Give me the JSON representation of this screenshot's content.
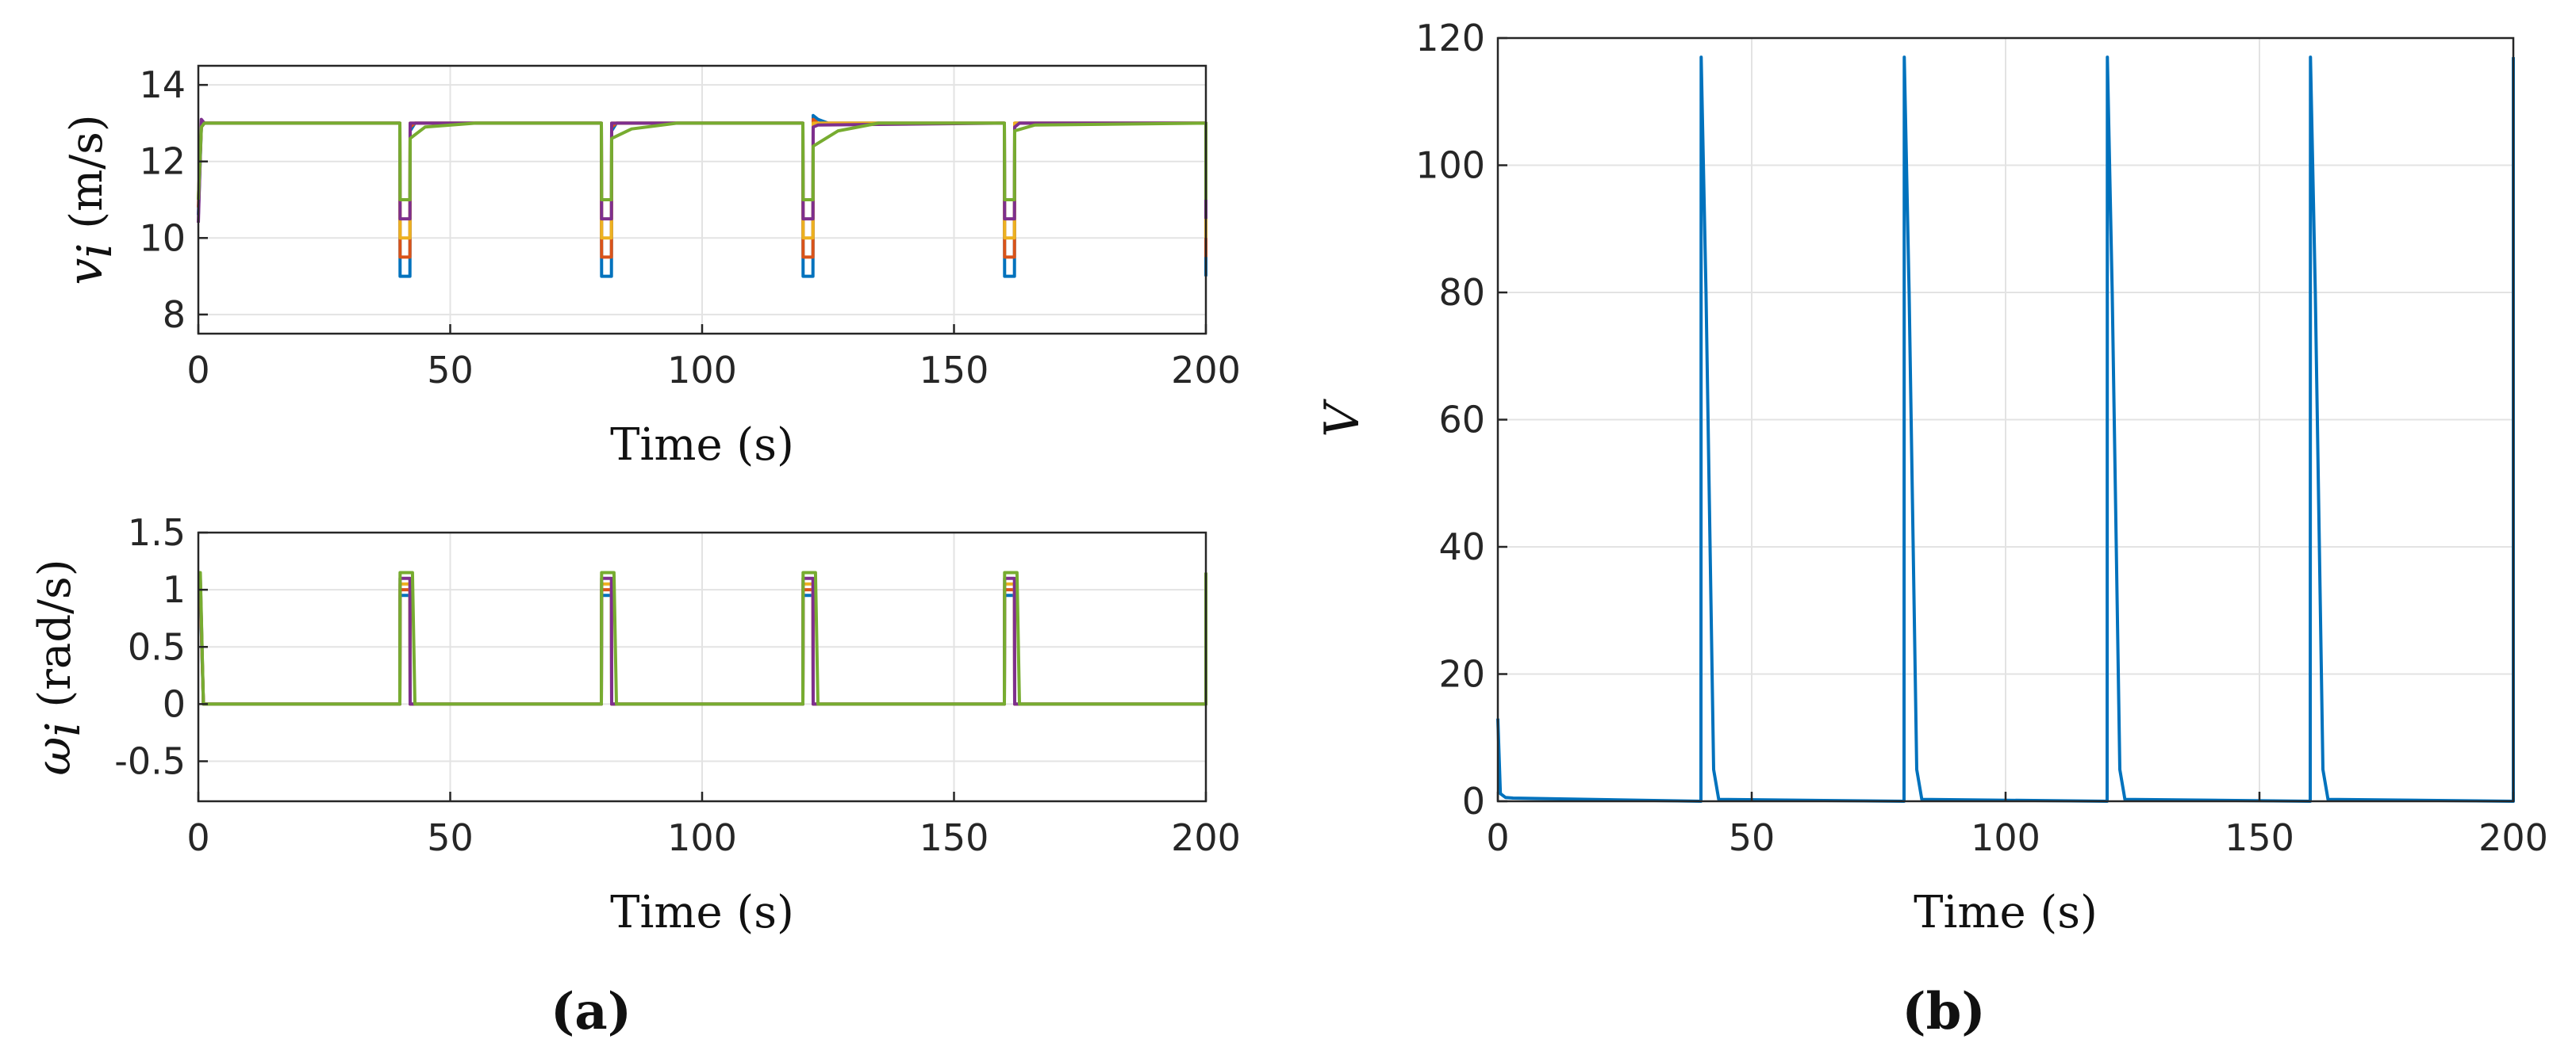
{
  "panels": {
    "a_label": "(a)",
    "b_label": "(b)"
  },
  "chart_data": [
    {
      "id": "a-top",
      "type": "line",
      "xlabel": "Time (s)",
      "ylabel_symbol": "v",
      "ylabel_subscript": "i",
      "ylabel_unit": " (m/s)",
      "xlim": [
        0,
        200
      ],
      "ylim": [
        7.5,
        14.5
      ],
      "xticks": [
        0,
        50,
        100,
        150,
        200
      ],
      "xtick_labels": [
        "0",
        "50",
        "100",
        "150",
        "200"
      ],
      "yticks": [
        8,
        10,
        12,
        14
      ],
      "ytick_labels": [
        "8",
        "10",
        "12",
        "14"
      ],
      "grid": true,
      "series": [
        {
          "color": "#0072BD",
          "x": [
            0,
            0.6,
            1.2,
            40,
            40.05,
            42,
            42.05,
            43,
            80,
            80.05,
            82,
            82.05,
            83,
            120,
            120.05,
            122,
            122.05,
            123,
            125,
            160,
            160.05,
            162,
            162.05,
            163,
            200,
            200.05
          ],
          "y": [
            10.6,
            12.9,
            13.0,
            13.0,
            9.0,
            9.0,
            12.8,
            13.0,
            13.0,
            9.0,
            9.0,
            12.8,
            13.0,
            13.0,
            9.0,
            9.0,
            13.2,
            13.1,
            13.0,
            13.0,
            9.0,
            9.0,
            13.0,
            13.0,
            13.0,
            9.0
          ]
        },
        {
          "color": "#D95319",
          "x": [
            0,
            0.6,
            1.2,
            40,
            40.05,
            42,
            42.05,
            43,
            80,
            80.05,
            82,
            82.05,
            83,
            120,
            120.05,
            122,
            122.05,
            123,
            160,
            160.05,
            162,
            162.05,
            163,
            200,
            200.05
          ],
          "y": [
            10.8,
            12.9,
            13.0,
            13.0,
            9.5,
            9.5,
            12.9,
            13.0,
            13.0,
            9.5,
            9.5,
            12.9,
            13.0,
            13.0,
            9.5,
            9.5,
            13.1,
            13.0,
            13.0,
            9.5,
            9.5,
            13.0,
            13.0,
            13.0,
            9.5
          ]
        },
        {
          "color": "#EDB120",
          "x": [
            0,
            0.6,
            1.2,
            40,
            40.05,
            42,
            42.05,
            43,
            80,
            80.05,
            82,
            82.05,
            83,
            120,
            120.05,
            122,
            122.05,
            123,
            160,
            160.05,
            162,
            162.05,
            163,
            200,
            200.05
          ],
          "y": [
            11.0,
            13.0,
            13.0,
            13.0,
            10.0,
            10.0,
            13.0,
            13.0,
            13.0,
            10.0,
            10.0,
            13.0,
            13.0,
            13.0,
            10.0,
            10.0,
            13.0,
            13.0,
            13.0,
            10.0,
            10.0,
            13.0,
            13.0,
            13.0,
            10.0
          ]
        },
        {
          "color": "#7E2F8E",
          "x": [
            0,
            0.6,
            1.2,
            40,
            40.05,
            42,
            42.05,
            43,
            80,
            80.05,
            82,
            82.05,
            83,
            120,
            120.05,
            122,
            122.05,
            123,
            160,
            160.05,
            162,
            162.05,
            163,
            200,
            200.05
          ],
          "y": [
            10.4,
            13.1,
            13.0,
            13.0,
            10.5,
            10.5,
            13.0,
            13.0,
            13.0,
            10.5,
            10.5,
            13.0,
            13.0,
            13.0,
            10.5,
            10.5,
            12.9,
            12.95,
            13.0,
            10.5,
            10.5,
            12.9,
            13.0,
            13.0,
            10.5
          ]
        },
        {
          "color": "#77AC30",
          "x": [
            0,
            0.6,
            1.2,
            40,
            40.05,
            42,
            42.05,
            45,
            55,
            80,
            80.05,
            82,
            82.05,
            86,
            95,
            120,
            120.05,
            122,
            122.05,
            127,
            135,
            160,
            160.05,
            162,
            162.05,
            166,
            200,
            200.05
          ],
          "y": [
            11.0,
            12.9,
            13.0,
            13.0,
            11.0,
            11.0,
            12.6,
            12.9,
            13.0,
            13.0,
            11.0,
            11.0,
            12.6,
            12.85,
            13.0,
            13.0,
            11.0,
            11.0,
            12.4,
            12.8,
            13.0,
            13.0,
            11.0,
            11.0,
            12.8,
            12.95,
            13.0,
            11.0
          ]
        }
      ]
    },
    {
      "id": "a-bottom",
      "type": "line",
      "xlabel": "Time (s)",
      "ylabel_symbol": "ω",
      "ylabel_subscript": "i",
      "ylabel_unit": " (rad/s)",
      "xlim": [
        0,
        200
      ],
      "ylim": [
        -0.85,
        1.5
      ],
      "xticks": [
        0,
        50,
        100,
        150,
        200
      ],
      "xtick_labels": [
        "0",
        "50",
        "100",
        "150",
        "200"
      ],
      "yticks": [
        -0.5,
        0,
        0.5,
        1,
        1.5
      ],
      "ytick_labels": [
        "-0.5",
        "0",
        "0.5",
        "1",
        "1.5"
      ],
      "grid": true,
      "series": [
        {
          "color": "#0072BD",
          "x": [
            0,
            0.4,
            1.0,
            40,
            40.05,
            42,
            42.05,
            80,
            80.05,
            82,
            82.05,
            120,
            120.05,
            122,
            122.05,
            160,
            160.05,
            162,
            162.05,
            200,
            200.05
          ],
          "y": [
            0.95,
            0.95,
            0.0,
            0.0,
            0.95,
            0.95,
            0.0,
            0.0,
            0.95,
            0.95,
            0.0,
            0.0,
            0.95,
            0.95,
            0.0,
            0.0,
            0.95,
            0.95,
            0.0,
            0.0,
            0.95
          ]
        },
        {
          "color": "#D95319",
          "x": [
            0,
            0.4,
            1.0,
            40,
            40.05,
            42,
            42.05,
            80,
            80.05,
            82,
            82.05,
            120,
            120.05,
            122,
            122.05,
            160,
            160.05,
            162,
            162.05,
            200,
            200.05
          ],
          "y": [
            1.0,
            1.0,
            0.0,
            0.0,
            1.0,
            1.0,
            0.0,
            0.0,
            1.0,
            1.0,
            0.0,
            0.0,
            1.0,
            1.0,
            0.0,
            0.0,
            1.0,
            1.0,
            0.0,
            0.0,
            1.0
          ]
        },
        {
          "color": "#EDB120",
          "x": [
            0,
            0.4,
            1.0,
            40,
            40.05,
            42,
            42.05,
            80,
            80.05,
            82,
            82.05,
            120,
            120.05,
            122,
            122.05,
            160,
            160.05,
            162,
            162.05,
            200,
            200.05
          ],
          "y": [
            1.05,
            1.05,
            0.0,
            0.0,
            1.05,
            1.05,
            0.0,
            0.0,
            1.05,
            1.05,
            0.0,
            0.0,
            1.05,
            1.05,
            0.0,
            0.0,
            1.05,
            1.05,
            0.0,
            0.0,
            1.05
          ]
        },
        {
          "color": "#7E2F8E",
          "x": [
            0,
            0.4,
            1.0,
            40,
            40.05,
            42,
            42.05,
            80,
            80.05,
            82,
            82.05,
            120,
            120.05,
            122,
            122.05,
            160,
            160.05,
            162,
            162.05,
            200,
            200.05
          ],
          "y": [
            1.1,
            1.1,
            0.0,
            0.0,
            1.1,
            1.1,
            0.0,
            0.0,
            1.1,
            1.1,
            0.0,
            0.0,
            1.1,
            1.1,
            0.0,
            0.0,
            1.1,
            1.1,
            0.0,
            0.0,
            1.1
          ]
        },
        {
          "color": "#77AC30",
          "x": [
            0,
            0.4,
            1.0,
            40,
            40.05,
            42.5,
            43.0,
            80,
            80.05,
            82.5,
            83.0,
            120,
            120.05,
            122.5,
            123.0,
            160,
            160.05,
            162.5,
            163.0,
            200,
            200.05
          ],
          "y": [
            1.15,
            1.15,
            0.0,
            0.0,
            1.15,
            1.15,
            0.0,
            0.0,
            1.15,
            1.15,
            0.0,
            0.0,
            1.15,
            1.15,
            0.0,
            0.0,
            1.15,
            1.15,
            0.0,
            0.0,
            1.15
          ]
        }
      ]
    },
    {
      "id": "b",
      "type": "line",
      "xlabel": "Time (s)",
      "ylabel": "V",
      "xlim": [
        0,
        200
      ],
      "ylim": [
        0,
        120
      ],
      "xticks": [
        0,
        50,
        100,
        150,
        200
      ],
      "xtick_labels": [
        "0",
        "50",
        "100",
        "150",
        "200"
      ],
      "yticks": [
        0,
        20,
        40,
        60,
        80,
        100,
        120
      ],
      "ytick_labels": [
        "0",
        "20",
        "40",
        "60",
        "80",
        "100",
        "120"
      ],
      "grid": true,
      "series": [
        {
          "color": "#0072BD",
          "x": [
            0,
            0.5,
            1.5,
            3,
            40,
            40.05,
            41,
            42.5,
            43.5,
            80,
            80.05,
            81,
            82.5,
            83.5,
            120,
            120.05,
            121,
            122.5,
            123.5,
            160,
            160.05,
            161,
            162.5,
            163.5,
            200,
            200.05
          ],
          "y": [
            13,
            1.2,
            0.6,
            0.5,
            0,
            117,
            80,
            5,
            0.3,
            0,
            117,
            80,
            5,
            0.3,
            0,
            117,
            80,
            5,
            0.3,
            0,
            117,
            80,
            5,
            0.3,
            0,
            117
          ]
        }
      ]
    }
  ]
}
